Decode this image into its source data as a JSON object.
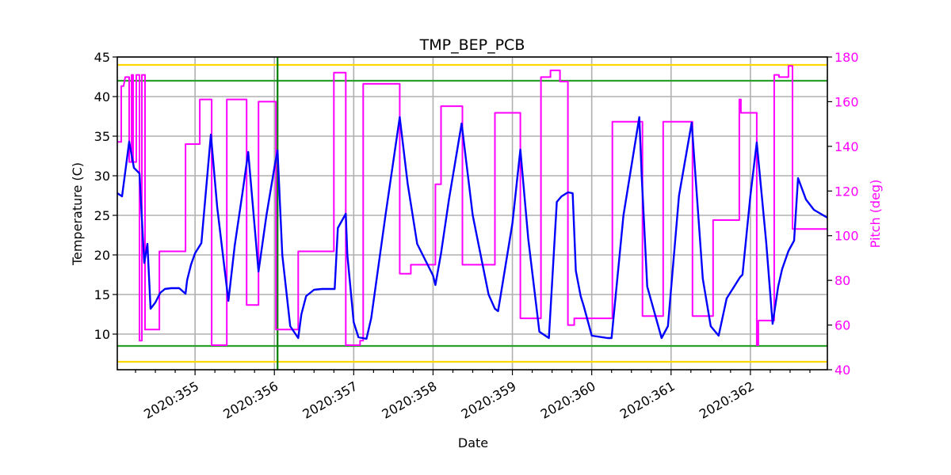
{
  "chart_data": {
    "type": "line",
    "title": "TMP_BEP_PCB",
    "xlabel": "Date",
    "ylabel": "Temperature (C)",
    "y2label": "Pitch (deg)",
    "xlim": [
      354.02,
      362.97
    ],
    "ylim": [
      5.5,
      45
    ],
    "y2lim": [
      40,
      180
    ],
    "grid": true,
    "legend": null,
    "x_ticks": [
      355,
      356,
      357,
      358,
      359,
      360,
      361,
      362
    ],
    "x_tick_labels": [
      "2020:355",
      "2020:356",
      "2020:357",
      "2020:358",
      "2020:359",
      "2020:360",
      "2020:361",
      "2020:362"
    ],
    "y_ticks": [
      10,
      15,
      20,
      25,
      30,
      35,
      40,
      45
    ],
    "y2_ticks": [
      40,
      60,
      80,
      100,
      120,
      140,
      160,
      180
    ],
    "reference_lines": [
      {
        "name": "yellow-upper-limit",
        "axis": "y",
        "value": 44,
        "color": "#ffd700"
      },
      {
        "name": "green-upper-limit",
        "axis": "y",
        "value": 42,
        "color": "#2ca02c"
      },
      {
        "name": "green-lower-limit",
        "axis": "y",
        "value": 8.5,
        "color": "#2ca02c"
      },
      {
        "name": "yellow-lower-limit",
        "axis": "y",
        "value": 6.5,
        "color": "#ffd700"
      },
      {
        "name": "green-vertical-marker",
        "axis": "x",
        "value": 356.04,
        "color": "#008000"
      }
    ],
    "series": [
      {
        "name": "TMP_BEP_PCB",
        "axis": "left",
        "color": "#0000ff",
        "x": [
          354.02,
          354.08,
          354.17,
          354.23,
          354.27,
          354.3,
          354.36,
          354.4,
          354.44,
          354.5,
          354.56,
          354.62,
          354.7,
          354.8,
          354.88,
          354.9,
          354.95,
          355.0,
          355.08,
          355.2,
          355.28,
          355.42,
          355.5,
          355.6,
          355.67,
          355.8,
          355.9,
          356.0,
          356.04,
          356.1,
          356.2,
          356.3,
          356.34,
          356.4,
          356.5,
          356.6,
          356.76,
          356.8,
          356.9,
          356.92,
          357.0,
          357.06,
          357.16,
          357.22,
          357.4,
          357.58,
          357.68,
          357.8,
          358.0,
          358.03,
          358.1,
          358.2,
          358.36,
          358.5,
          358.7,
          358.78,
          358.82,
          359.0,
          359.1,
          359.2,
          359.34,
          359.46,
          359.56,
          359.62,
          359.7,
          359.76,
          359.8,
          359.86,
          359.9,
          360.0,
          360.2,
          360.25,
          360.4,
          360.6,
          360.63,
          360.7,
          360.88,
          360.96,
          361.1,
          361.26,
          361.4,
          361.5,
          361.6,
          361.7,
          361.87,
          361.9,
          362.0,
          362.08,
          362.2,
          362.28,
          362.35,
          362.4,
          362.48,
          362.55,
          362.6,
          362.7,
          362.8,
          362.97
        ],
        "y": [
          27.8,
          27.4,
          34.3,
          31.0,
          30.6,
          30.3,
          19.0,
          21.4,
          13.2,
          14.0,
          15.2,
          15.7,
          15.8,
          15.8,
          15.1,
          16.8,
          18.8,
          20.2,
          21.5,
          35.2,
          26.0,
          14.2,
          21.2,
          28.0,
          33.0,
          17.9,
          25.0,
          31.0,
          33.2,
          20.0,
          11.0,
          9.5,
          12.5,
          14.8,
          15.6,
          15.7,
          15.7,
          23.4,
          25.2,
          20.0,
          11.5,
          9.6,
          9.4,
          12.0,
          25.0,
          37.4,
          29.0,
          21.4,
          17.4,
          16.2,
          20.2,
          27.0,
          36.6,
          25.0,
          15.0,
          13.2,
          12.9,
          24.0,
          33.3,
          22.0,
          10.3,
          9.5,
          26.7,
          27.4,
          27.9,
          27.8,
          18.0,
          14.8,
          13.5,
          9.8,
          9.5,
          9.5,
          25.0,
          37.4,
          30.0,
          16.0,
          9.5,
          11.0,
          27.5,
          36.7,
          17.0,
          11.0,
          9.8,
          14.5,
          17.2,
          17.5,
          27.5,
          34.2,
          21.5,
          11.3,
          16.0,
          18.2,
          20.5,
          21.8,
          29.7,
          27.0,
          25.7,
          24.7
        ]
      },
      {
        "name": "Pitch",
        "axis": "right",
        "color": "#ff00ff",
        "x": [
          354.02,
          354.07,
          354.07,
          354.1,
          354.12,
          354.12,
          354.17,
          354.17,
          354.2,
          354.2,
          354.22,
          354.22,
          354.26,
          354.26,
          354.3,
          354.3,
          354.33,
          354.33,
          354.37,
          354.37,
          354.41,
          354.41,
          354.55,
          354.55,
          354.88,
          354.88,
          355.06,
          355.06,
          355.21,
          355.21,
          355.4,
          355.4,
          355.65,
          355.65,
          355.8,
          355.8,
          356.02,
          356.02,
          356.3,
          356.3,
          356.75,
          356.75,
          356.9,
          356.9,
          357.08,
          357.08,
          357.12,
          357.12,
          357.22,
          357.22,
          357.58,
          357.58,
          357.72,
          357.72,
          357.74,
          357.74,
          358.03,
          358.03,
          358.1,
          358.1,
          358.37,
          358.37,
          358.78,
          358.78,
          359.1,
          359.1,
          359.36,
          359.36,
          359.48,
          359.48,
          359.6,
          359.6,
          359.7,
          359.7,
          359.78,
          359.78,
          359.88,
          359.88,
          359.9,
          359.9,
          360.26,
          360.26,
          360.64,
          360.64,
          360.9,
          360.9,
          361.27,
          361.27,
          361.53,
          361.53,
          361.86,
          361.86,
          361.88,
          361.88,
          362.08,
          362.08,
          362.1,
          362.1,
          362.3,
          362.3,
          362.36,
          362.36,
          362.48,
          362.48,
          362.53,
          362.53,
          362.97
        ],
        "y": [
          142,
          142,
          167,
          167,
          171,
          171,
          171,
          133,
          133,
          172,
          172,
          133,
          133,
          172,
          172,
          53,
          53,
          172,
          172,
          58,
          58,
          58,
          58,
          93,
          93,
          141,
          141,
          161,
          161,
          51,
          51,
          161,
          161,
          69,
          69,
          160,
          160,
          58,
          58,
          93,
          93,
          173,
          173,
          51,
          51,
          53,
          53,
          168,
          168,
          168,
          168,
          83,
          83,
          87,
          87,
          87,
          87,
          123,
          123,
          158,
          158,
          87,
          87,
          155,
          155,
          63,
          63,
          171,
          171,
          174,
          174,
          169,
          169,
          60,
          60,
          63,
          63,
          63,
          63,
          63,
          63,
          151,
          151,
          64,
          64,
          151,
          151,
          64,
          64,
          107,
          107,
          161,
          161,
          155,
          155,
          51,
          51,
          62,
          62,
          172,
          172,
          171,
          171,
          176,
          176,
          103,
          103
        ]
      }
    ]
  }
}
